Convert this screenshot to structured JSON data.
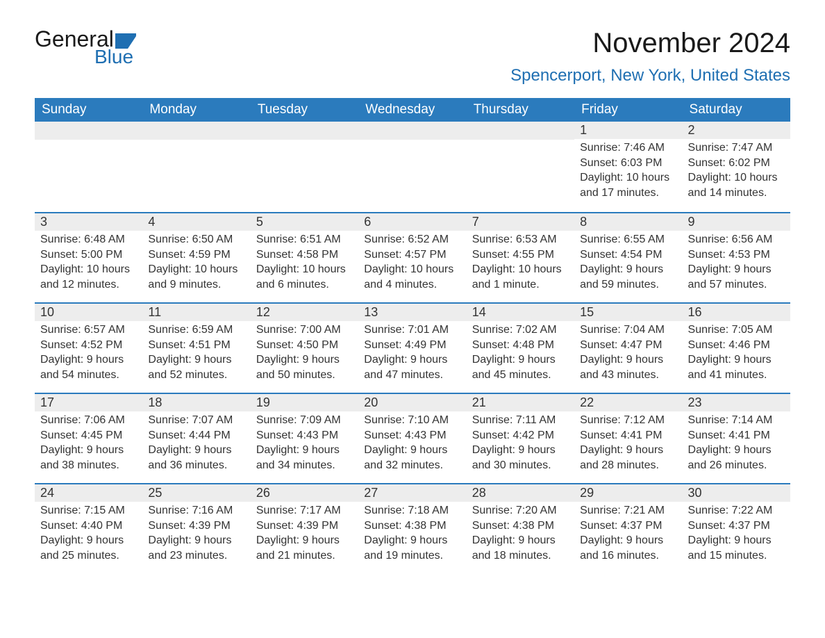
{
  "logo": {
    "word1": "General",
    "word2": "Blue",
    "flag_color": "#1f6fb2"
  },
  "title": "November 2024",
  "location": "Spencerport, New York, United States",
  "colors": {
    "header_bg": "#2b7bbd",
    "header_text": "#ffffff",
    "accent": "#1f6fb2",
    "daynum_bg": "#ededed",
    "body_text": "#333333",
    "page_bg": "#ffffff"
  },
  "day_names": [
    "Sunday",
    "Monday",
    "Tuesday",
    "Wednesday",
    "Thursday",
    "Friday",
    "Saturday"
  ],
  "labels": {
    "sunrise": "Sunrise: ",
    "sunset": "Sunset: ",
    "daylight": "Daylight: "
  },
  "weeks": [
    [
      null,
      null,
      null,
      null,
      null,
      {
        "d": "1",
        "sr": "7:46 AM",
        "ss": "6:03 PM",
        "dl": "10 hours and 17 minutes."
      },
      {
        "d": "2",
        "sr": "7:47 AM",
        "ss": "6:02 PM",
        "dl": "10 hours and 14 minutes."
      }
    ],
    [
      {
        "d": "3",
        "sr": "6:48 AM",
        "ss": "5:00 PM",
        "dl": "10 hours and 12 minutes."
      },
      {
        "d": "4",
        "sr": "6:50 AM",
        "ss": "4:59 PM",
        "dl": "10 hours and 9 minutes."
      },
      {
        "d": "5",
        "sr": "6:51 AM",
        "ss": "4:58 PM",
        "dl": "10 hours and 6 minutes."
      },
      {
        "d": "6",
        "sr": "6:52 AM",
        "ss": "4:57 PM",
        "dl": "10 hours and 4 minutes."
      },
      {
        "d": "7",
        "sr": "6:53 AM",
        "ss": "4:55 PM",
        "dl": "10 hours and 1 minute."
      },
      {
        "d": "8",
        "sr": "6:55 AM",
        "ss": "4:54 PM",
        "dl": "9 hours and 59 minutes."
      },
      {
        "d": "9",
        "sr": "6:56 AM",
        "ss": "4:53 PM",
        "dl": "9 hours and 57 minutes."
      }
    ],
    [
      {
        "d": "10",
        "sr": "6:57 AM",
        "ss": "4:52 PM",
        "dl": "9 hours and 54 minutes."
      },
      {
        "d": "11",
        "sr": "6:59 AM",
        "ss": "4:51 PM",
        "dl": "9 hours and 52 minutes."
      },
      {
        "d": "12",
        "sr": "7:00 AM",
        "ss": "4:50 PM",
        "dl": "9 hours and 50 minutes."
      },
      {
        "d": "13",
        "sr": "7:01 AM",
        "ss": "4:49 PM",
        "dl": "9 hours and 47 minutes."
      },
      {
        "d": "14",
        "sr": "7:02 AM",
        "ss": "4:48 PM",
        "dl": "9 hours and 45 minutes."
      },
      {
        "d": "15",
        "sr": "7:04 AM",
        "ss": "4:47 PM",
        "dl": "9 hours and 43 minutes."
      },
      {
        "d": "16",
        "sr": "7:05 AM",
        "ss": "4:46 PM",
        "dl": "9 hours and 41 minutes."
      }
    ],
    [
      {
        "d": "17",
        "sr": "7:06 AM",
        "ss": "4:45 PM",
        "dl": "9 hours and 38 minutes."
      },
      {
        "d": "18",
        "sr": "7:07 AM",
        "ss": "4:44 PM",
        "dl": "9 hours and 36 minutes."
      },
      {
        "d": "19",
        "sr": "7:09 AM",
        "ss": "4:43 PM",
        "dl": "9 hours and 34 minutes."
      },
      {
        "d": "20",
        "sr": "7:10 AM",
        "ss": "4:43 PM",
        "dl": "9 hours and 32 minutes."
      },
      {
        "d": "21",
        "sr": "7:11 AM",
        "ss": "4:42 PM",
        "dl": "9 hours and 30 minutes."
      },
      {
        "d": "22",
        "sr": "7:12 AM",
        "ss": "4:41 PM",
        "dl": "9 hours and 28 minutes."
      },
      {
        "d": "23",
        "sr": "7:14 AM",
        "ss": "4:41 PM",
        "dl": "9 hours and 26 minutes."
      }
    ],
    [
      {
        "d": "24",
        "sr": "7:15 AM",
        "ss": "4:40 PM",
        "dl": "9 hours and 25 minutes."
      },
      {
        "d": "25",
        "sr": "7:16 AM",
        "ss": "4:39 PM",
        "dl": "9 hours and 23 minutes."
      },
      {
        "d": "26",
        "sr": "7:17 AM",
        "ss": "4:39 PM",
        "dl": "9 hours and 21 minutes."
      },
      {
        "d": "27",
        "sr": "7:18 AM",
        "ss": "4:38 PM",
        "dl": "9 hours and 19 minutes."
      },
      {
        "d": "28",
        "sr": "7:20 AM",
        "ss": "4:38 PM",
        "dl": "9 hours and 18 minutes."
      },
      {
        "d": "29",
        "sr": "7:21 AM",
        "ss": "4:37 PM",
        "dl": "9 hours and 16 minutes."
      },
      {
        "d": "30",
        "sr": "7:22 AM",
        "ss": "4:37 PM",
        "dl": "9 hours and 15 minutes."
      }
    ]
  ]
}
